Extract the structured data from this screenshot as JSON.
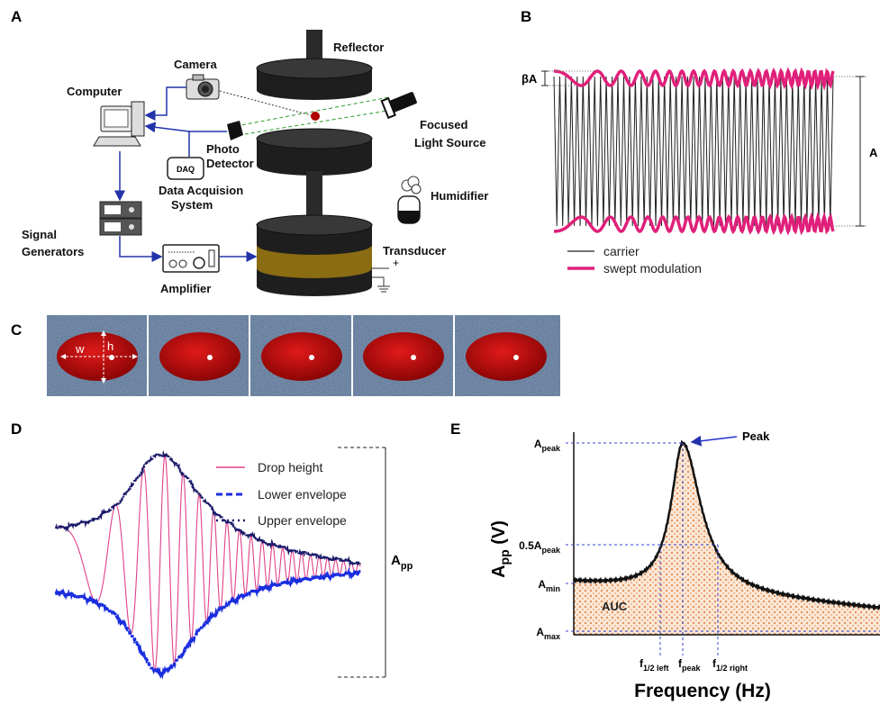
{
  "panels": {
    "a": {
      "label": "A",
      "reflector": "Reflector",
      "camera": "Camera",
      "computer": "Computer",
      "light_source": [
        "Focused",
        "Light Source"
      ],
      "photo_detector": [
        "Photo",
        "Detector"
      ],
      "daq": "DAQ",
      "data_acquisition": [
        "Data Acquision",
        "System"
      ],
      "humidifier": "Humidifier",
      "signal_generators": [
        "Signal",
        "Generators"
      ],
      "amplifier": "Amplifier",
      "transducer": "Transducer",
      "plus": "+"
    },
    "b": {
      "label": "B",
      "beta_a": "βA",
      "a": "A",
      "legend": [
        "carrier",
        "swept modulation"
      ]
    },
    "c": {
      "label": "C",
      "w": "w",
      "h": "h"
    },
    "d": {
      "label": "D",
      "legend": [
        "Drop height",
        "Lower envelope",
        "Upper envelope"
      ],
      "app": {
        "base": "A",
        "sub": "pp"
      }
    },
    "e": {
      "label": "E",
      "peak": "Peak",
      "auc": "AUC",
      "y_title": {
        "base": "A",
        "sub": "pp",
        "rest": " (V)"
      },
      "x_title": "Frequency (Hz)",
      "y_labels": [
        {
          "base": "A",
          "sub": "peak"
        },
        {
          "base": "0.5A",
          "sub": "peak"
        },
        {
          "base": "A",
          "sub": "min"
        },
        {
          "base": "A",
          "sub": "max"
        }
      ],
      "x_labels": [
        {
          "base": "f",
          "sub": "1/2 left"
        },
        {
          "base": "f",
          "sub": "peak"
        },
        {
          "base": "f",
          "sub": "1/2 right"
        }
      ]
    }
  }
}
